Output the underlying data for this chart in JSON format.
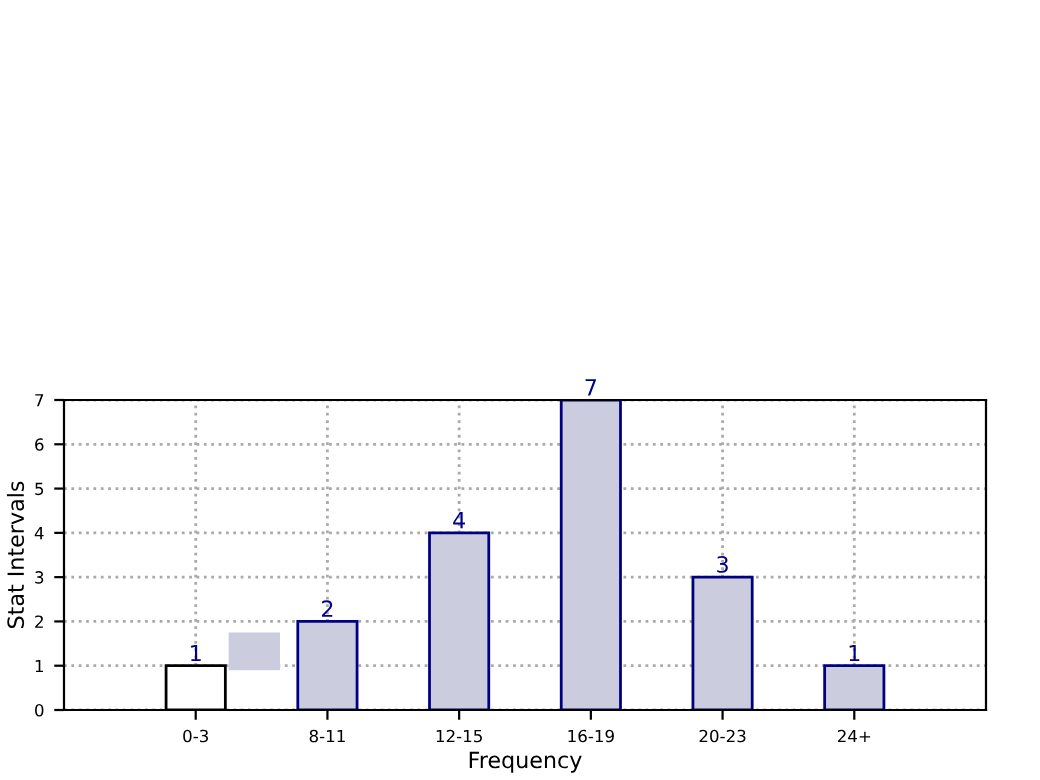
{
  "chart_data": {
    "type": "bar",
    "xlabel": "Frequency",
    "ylabel": "Stat Intervals",
    "categories": [
      "0-3",
      "8-11",
      "12-15",
      "16-19",
      "20-23",
      "24+"
    ],
    "values": [
      1,
      2,
      4,
      7,
      3,
      1
    ],
    "colors": [
      "#ffffff",
      "#ccccdf",
      "#ccccdf",
      "#ccccdf",
      "#ccccdf",
      "#ccccdf"
    ],
    "ylim": [
      0,
      7
    ],
    "yticks": [
      0,
      1,
      2,
      3,
      4,
      5,
      6,
      7
    ],
    "grid": true,
    "data_labels": true
  }
}
